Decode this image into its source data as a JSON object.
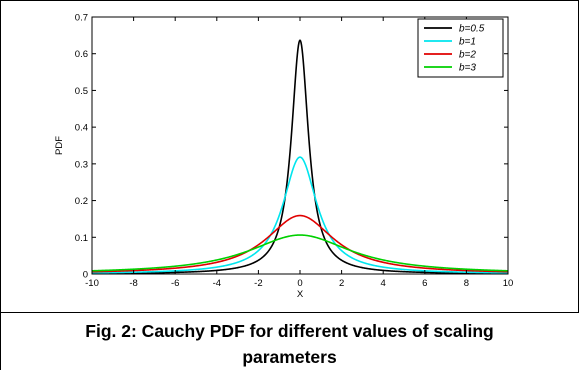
{
  "chart_data": {
    "type": "line",
    "title": "",
    "xlabel": "X",
    "ylabel": "PDF",
    "xlim": [
      -10,
      10
    ],
    "ylim": [
      0,
      0.7
    ],
    "xticks": [
      -10,
      -8,
      -6,
      -4,
      -2,
      0,
      2,
      4,
      6,
      8,
      10
    ],
    "yticks": [
      0,
      0.1,
      0.2,
      0.3,
      0.4,
      0.5,
      0.6,
      0.7
    ],
    "grid": false,
    "legend_position": "top-right",
    "series": [
      {
        "name": "b=0.5",
        "b": 0.5,
        "color": "#000000"
      },
      {
        "name": "b=1",
        "b": 1,
        "color": "#00e5ee"
      },
      {
        "name": "b=2",
        "b": 2,
        "color": "#e00000"
      },
      {
        "name": "b=3",
        "b": 3,
        "color": "#00d000"
      }
    ]
  },
  "caption": {
    "line1": "Fig. 2: Cauchy PDF for different values of scaling",
    "line2": "parameters"
  }
}
